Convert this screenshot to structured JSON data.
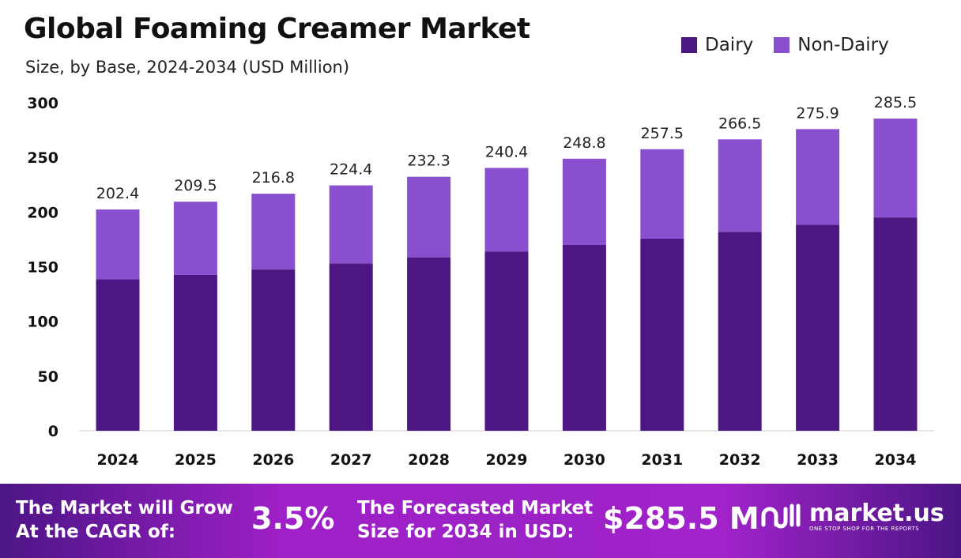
{
  "chart_data": {
    "type": "bar",
    "stacked": true,
    "title": "Global Foaming Creamer Market",
    "subtitle": "Size, by Base, 2024-2034 (USD Million)",
    "categories": [
      "2024",
      "2025",
      "2026",
      "2027",
      "2028",
      "2029",
      "2030",
      "2031",
      "2032",
      "2033",
      "2034"
    ],
    "series": [
      {
        "name": "Dairy",
        "color": "#4e1682",
        "values": [
          138.5,
          142.6,
          147.6,
          153.0,
          158.6,
          164.0,
          169.9,
          175.7,
          182.0,
          188.5,
          195.1
        ]
      },
      {
        "name": "Non-Dairy",
        "color": "#8a4fcf",
        "values": [
          63.9,
          66.9,
          69.2,
          71.4,
          73.7,
          76.4,
          78.9,
          81.8,
          84.5,
          87.4,
          90.4
        ]
      }
    ],
    "totals": [
      "202.4",
      "209.5",
      "216.8",
      "224.4",
      "232.3",
      "240.4",
      "248.8",
      "257.5",
      "266.5",
      "275.9",
      "285.5"
    ],
    "yticks": [
      "0",
      "50",
      "100",
      "150",
      "200",
      "250",
      "300"
    ],
    "ylim": [
      0,
      300
    ],
    "legend_position": "top-right",
    "grid": false
  },
  "footer": {
    "cagr_label_1": "The Market will Grow",
    "cagr_label_2": "At the CAGR of:",
    "cagr_value": "3.5%",
    "forecast_label_1": "The Forecasted Market",
    "forecast_label_2": "Size for 2034 in USD:",
    "forecast_value": "$285.5 M",
    "brand": "market.us",
    "brand_tagline": "ONE STOP SHOP FOR THE REPORTS"
  }
}
